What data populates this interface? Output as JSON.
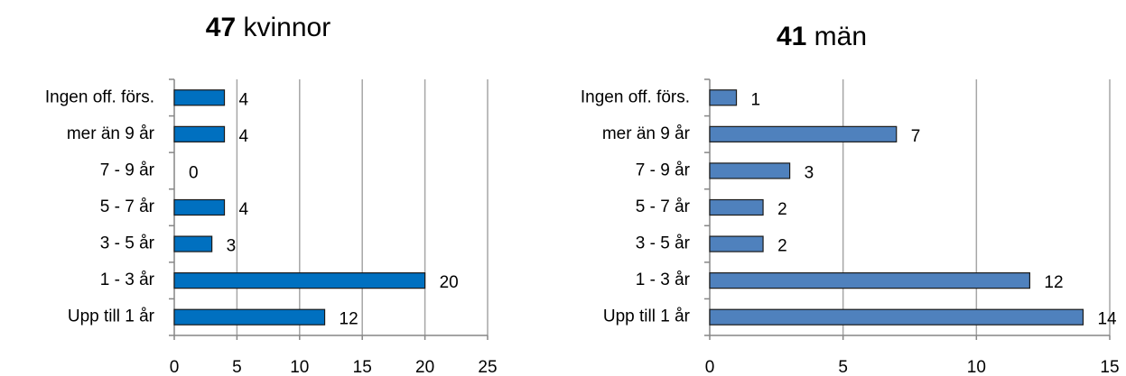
{
  "chart_data": [
    {
      "type": "bar",
      "orientation": "horizontal",
      "title_count": "47",
      "title": "kvinnor",
      "categories": [
        "Ingen off. förs.",
        "mer än 9 år",
        "7 - 9 år",
        "5 - 7 år",
        "3 - 5 år",
        "1 - 3 år",
        "Upp till 1 år"
      ],
      "values": [
        4,
        4,
        0,
        4,
        3,
        20,
        12
      ],
      "color": "#0070c0",
      "xlim": [
        0,
        25
      ],
      "xticks": [
        0,
        5,
        10,
        15,
        20,
        25
      ],
      "grid": true
    },
    {
      "type": "bar",
      "orientation": "horizontal",
      "title_count": "41",
      "title": "män",
      "categories": [
        "Ingen off. förs.",
        "mer än 9 år",
        "7 - 9 år",
        "5 - 7 år",
        "3 - 5 år",
        "1 - 3 år",
        "Upp till 1 år"
      ],
      "values": [
        1,
        7,
        3,
        2,
        2,
        12,
        14
      ],
      "color": "#4f81bd",
      "xlim": [
        0,
        15
      ],
      "xticks": [
        0,
        5,
        10,
        15
      ],
      "grid": true
    }
  ]
}
